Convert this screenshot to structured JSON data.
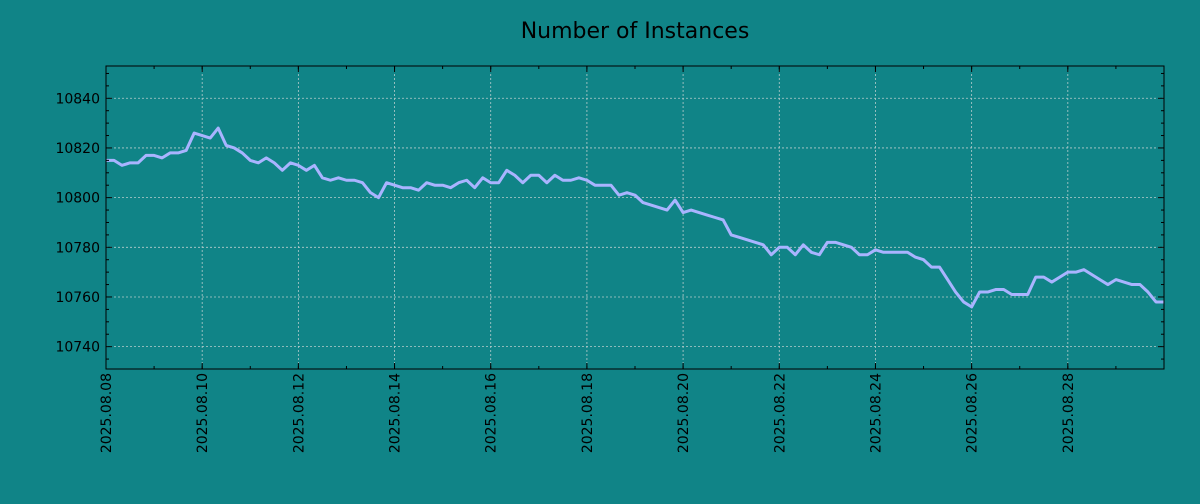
{
  "chart_data": {
    "type": "line",
    "title": "Number of Instances",
    "xlabel": "",
    "ylabel": "",
    "x_ticks": [
      "2025.08.08",
      "2025.08.10",
      "2025.08.12",
      "2025.08.14",
      "2025.08.16",
      "2025.08.18",
      "2025.08.20",
      "2025.08.22",
      "2025.08.24",
      "2025.08.26",
      "2025.08.28"
    ],
    "y_ticks": [
      10740,
      10760,
      10780,
      10800,
      10820,
      10840
    ],
    "xlim": [
      "2025-08-08 00:00",
      "2025-08-30 00:00"
    ],
    "ylim": [
      10731,
      10853
    ],
    "grid": true,
    "colors": {
      "background": "#108487",
      "line": "#a9b4ff",
      "grid": "#b6cccc",
      "axes": "#000000"
    },
    "series": [
      {
        "points": [
          [
            "2025-08-08 00:00",
            10815
          ],
          [
            "2025-08-08 04:00",
            10815
          ],
          [
            "2025-08-08 08:00",
            10813
          ],
          [
            "2025-08-08 12:00",
            10814
          ],
          [
            "2025-08-08 16:00",
            10814
          ],
          [
            "2025-08-08 20:00",
            10817
          ],
          [
            "2025-08-09 00:00",
            10817
          ],
          [
            "2025-08-09 04:00",
            10816
          ],
          [
            "2025-08-09 08:00",
            10818
          ],
          [
            "2025-08-09 12:00",
            10818
          ],
          [
            "2025-08-09 16:00",
            10819
          ],
          [
            "2025-08-09 20:00",
            10826
          ],
          [
            "2025-08-10 00:00",
            10825
          ],
          [
            "2025-08-10 04:00",
            10824
          ],
          [
            "2025-08-10 08:00",
            10828
          ],
          [
            "2025-08-10 12:00",
            10821
          ],
          [
            "2025-08-10 16:00",
            10820
          ],
          [
            "2025-08-10 20:00",
            10818
          ],
          [
            "2025-08-11 00:00",
            10815
          ],
          [
            "2025-08-11 04:00",
            10814
          ],
          [
            "2025-08-11 08:00",
            10816
          ],
          [
            "2025-08-11 12:00",
            10814
          ],
          [
            "2025-08-11 16:00",
            10811
          ],
          [
            "2025-08-11 20:00",
            10814
          ],
          [
            "2025-08-12 00:00",
            10813
          ],
          [
            "2025-08-12 04:00",
            10811
          ],
          [
            "2025-08-12 08:00",
            10813
          ],
          [
            "2025-08-12 12:00",
            10808
          ],
          [
            "2025-08-12 16:00",
            10807
          ],
          [
            "2025-08-12 20:00",
            10808
          ],
          [
            "2025-08-13 00:00",
            10807
          ],
          [
            "2025-08-13 04:00",
            10807
          ],
          [
            "2025-08-13 08:00",
            10806
          ],
          [
            "2025-08-13 12:00",
            10802
          ],
          [
            "2025-08-13 16:00",
            10800
          ],
          [
            "2025-08-13 20:00",
            10806
          ],
          [
            "2025-08-14 00:00",
            10805
          ],
          [
            "2025-08-14 04:00",
            10804
          ],
          [
            "2025-08-14 08:00",
            10804
          ],
          [
            "2025-08-14 12:00",
            10803
          ],
          [
            "2025-08-14 16:00",
            10806
          ],
          [
            "2025-08-14 20:00",
            10805
          ],
          [
            "2025-08-15 00:00",
            10805
          ],
          [
            "2025-08-15 04:00",
            10804
          ],
          [
            "2025-08-15 08:00",
            10806
          ],
          [
            "2025-08-15 12:00",
            10807
          ],
          [
            "2025-08-15 16:00",
            10804
          ],
          [
            "2025-08-15 20:00",
            10808
          ],
          [
            "2025-08-16 00:00",
            10806
          ],
          [
            "2025-08-16 04:00",
            10806
          ],
          [
            "2025-08-16 08:00",
            10811
          ],
          [
            "2025-08-16 12:00",
            10809
          ],
          [
            "2025-08-16 16:00",
            10806
          ],
          [
            "2025-08-16 20:00",
            10809
          ],
          [
            "2025-08-17 00:00",
            10809
          ],
          [
            "2025-08-17 04:00",
            10806
          ],
          [
            "2025-08-17 08:00",
            10809
          ],
          [
            "2025-08-17 12:00",
            10807
          ],
          [
            "2025-08-17 16:00",
            10807
          ],
          [
            "2025-08-17 20:00",
            10808
          ],
          [
            "2025-08-18 00:00",
            10807
          ],
          [
            "2025-08-18 04:00",
            10805
          ],
          [
            "2025-08-18 08:00",
            10805
          ],
          [
            "2025-08-18 12:00",
            10805
          ],
          [
            "2025-08-18 16:00",
            10801
          ],
          [
            "2025-08-18 20:00",
            10802
          ],
          [
            "2025-08-19 00:00",
            10801
          ],
          [
            "2025-08-19 04:00",
            10798
          ],
          [
            "2025-08-19 08:00",
            10797
          ],
          [
            "2025-08-19 12:00",
            10796
          ],
          [
            "2025-08-19 16:00",
            10795
          ],
          [
            "2025-08-19 20:00",
            10799
          ],
          [
            "2025-08-20 00:00",
            10794
          ],
          [
            "2025-08-20 04:00",
            10795
          ],
          [
            "2025-08-20 08:00",
            10794
          ],
          [
            "2025-08-20 12:00",
            10793
          ],
          [
            "2025-08-20 16:00",
            10792
          ],
          [
            "2025-08-20 20:00",
            10791
          ],
          [
            "2025-08-21 00:00",
            10785
          ],
          [
            "2025-08-21 04:00",
            10784
          ],
          [
            "2025-08-21 08:00",
            10783
          ],
          [
            "2025-08-21 12:00",
            10782
          ],
          [
            "2025-08-21 16:00",
            10781
          ],
          [
            "2025-08-21 20:00",
            10777
          ],
          [
            "2025-08-22 00:00",
            10780
          ],
          [
            "2025-08-22 04:00",
            10780
          ],
          [
            "2025-08-22 08:00",
            10777
          ],
          [
            "2025-08-22 12:00",
            10781
          ],
          [
            "2025-08-22 16:00",
            10778
          ],
          [
            "2025-08-22 20:00",
            10777
          ],
          [
            "2025-08-23 00:00",
            10782
          ],
          [
            "2025-08-23 04:00",
            10782
          ],
          [
            "2025-08-23 08:00",
            10781
          ],
          [
            "2025-08-23 12:00",
            10780
          ],
          [
            "2025-08-23 16:00",
            10777
          ],
          [
            "2025-08-23 20:00",
            10777
          ],
          [
            "2025-08-24 00:00",
            10779
          ],
          [
            "2025-08-24 04:00",
            10778
          ],
          [
            "2025-08-24 08:00",
            10778
          ],
          [
            "2025-08-24 12:00",
            10778
          ],
          [
            "2025-08-24 16:00",
            10778
          ],
          [
            "2025-08-24 20:00",
            10776
          ],
          [
            "2025-08-25 00:00",
            10775
          ],
          [
            "2025-08-25 04:00",
            10772
          ],
          [
            "2025-08-25 08:00",
            10772
          ],
          [
            "2025-08-25 12:00",
            10767
          ],
          [
            "2025-08-25 16:00",
            10762
          ],
          [
            "2025-08-25 20:00",
            10758
          ],
          [
            "2025-08-26 00:00",
            10756
          ],
          [
            "2025-08-26 04:00",
            10762
          ],
          [
            "2025-08-26 08:00",
            10762
          ],
          [
            "2025-08-26 12:00",
            10763
          ],
          [
            "2025-08-26 16:00",
            10763
          ],
          [
            "2025-08-26 20:00",
            10761
          ],
          [
            "2025-08-27 00:00",
            10761
          ],
          [
            "2025-08-27 04:00",
            10761
          ],
          [
            "2025-08-27 08:00",
            10768
          ],
          [
            "2025-08-27 12:00",
            10768
          ],
          [
            "2025-08-27 16:00",
            10766
          ],
          [
            "2025-08-27 20:00",
            10768
          ],
          [
            "2025-08-28 00:00",
            10770
          ],
          [
            "2025-08-28 04:00",
            10770
          ],
          [
            "2025-08-28 08:00",
            10771
          ],
          [
            "2025-08-28 12:00",
            10769
          ],
          [
            "2025-08-28 16:00",
            10767
          ],
          [
            "2025-08-28 20:00",
            10765
          ],
          [
            "2025-08-29 00:00",
            10767
          ],
          [
            "2025-08-29 04:00",
            10766
          ],
          [
            "2025-08-29 08:00",
            10765
          ],
          [
            "2025-08-29 12:00",
            10765
          ],
          [
            "2025-08-29 16:00",
            10762
          ],
          [
            "2025-08-29 20:00",
            10758
          ],
          [
            "2025-08-30 00:00",
            10758
          ]
        ]
      }
    ]
  }
}
